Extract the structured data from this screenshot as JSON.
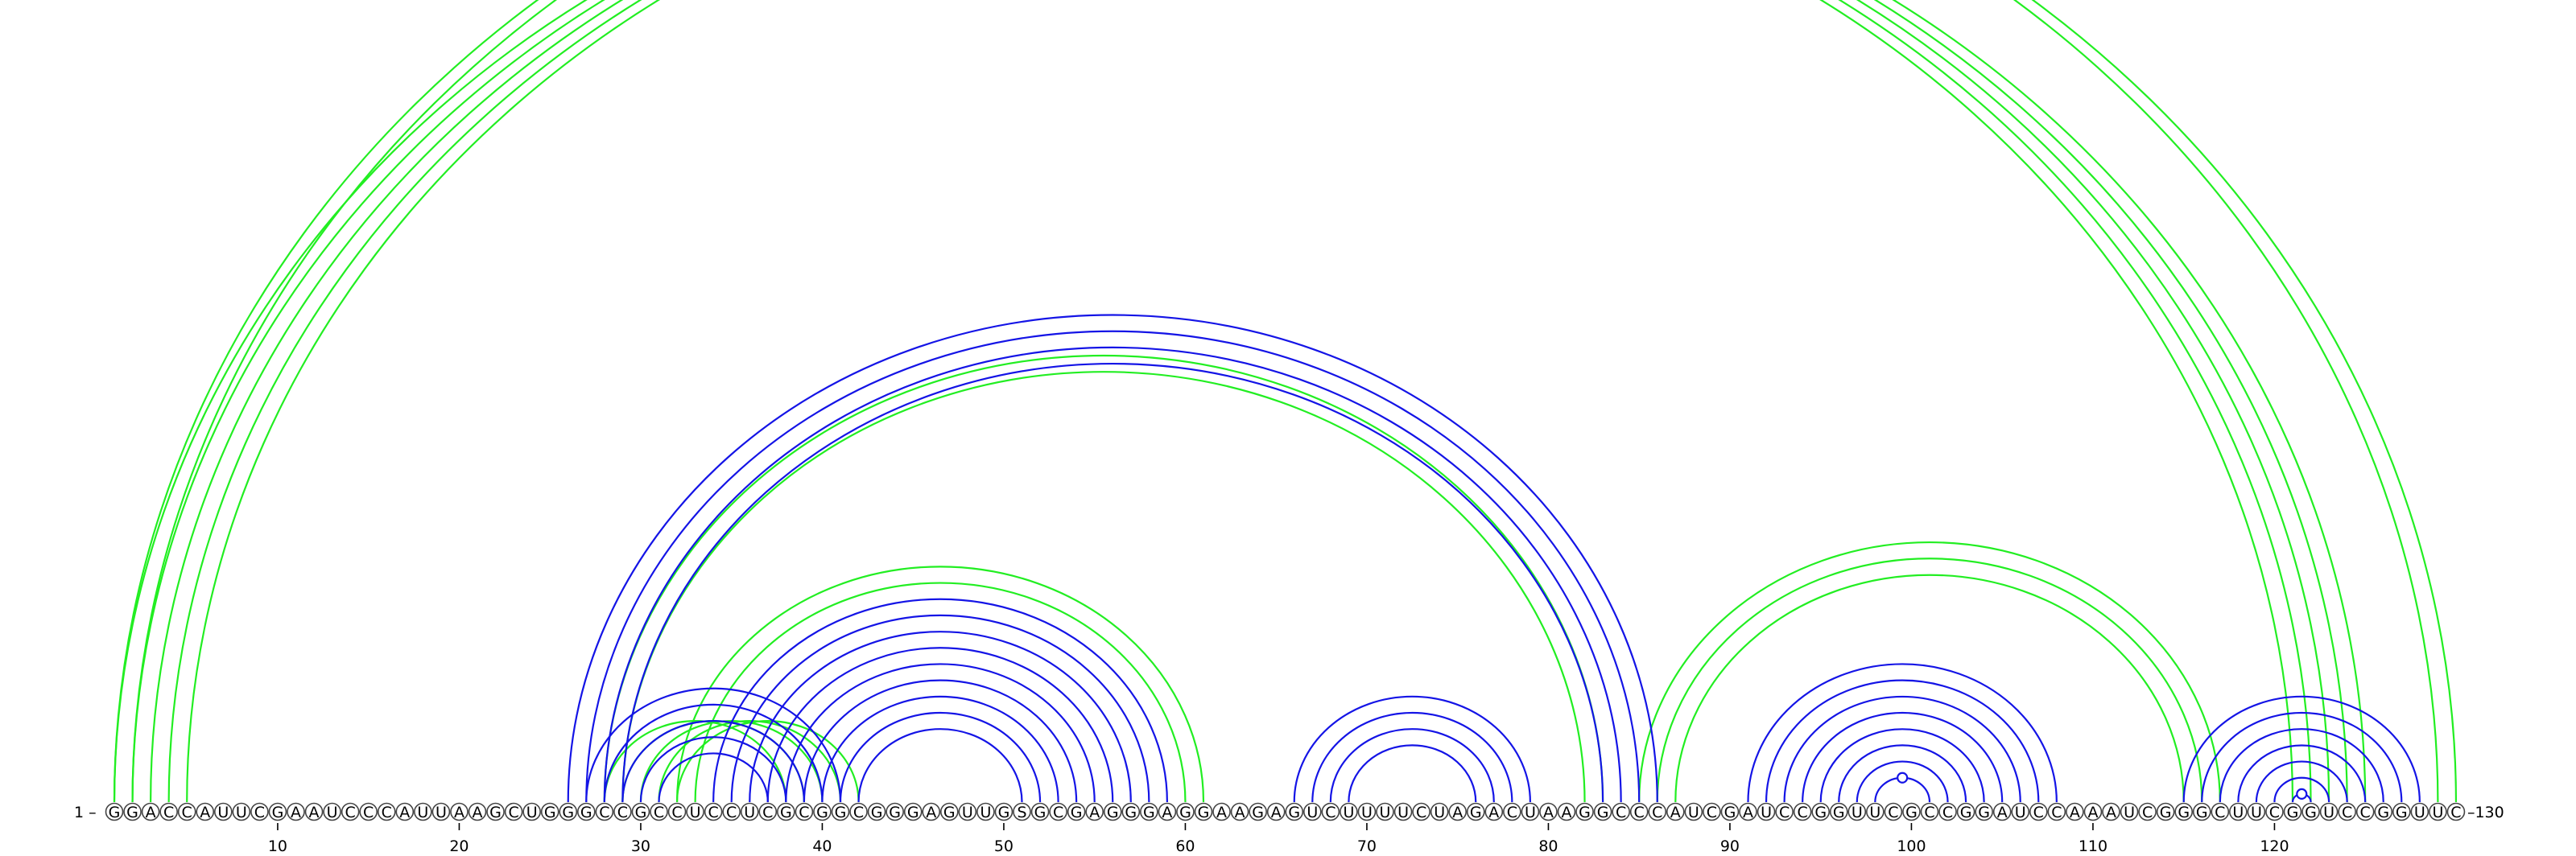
{
  "sequence": "GGACCAUUCGAAUCCCAUUAAGCUGGGCCGCCUCCUCGCGGCGGGAGUUGSGCGAGGGAGGAAGAGUCUUUUCUAGACUAAGGCCCAUCGAUCCGGUUCGCCGGAUCCAAAUCGGGCUUCGGUCCGGUUC",
  "start_label": "1 –",
  "end_label": "–130",
  "ticks": [
    10,
    20,
    30,
    40,
    50,
    60,
    70,
    80,
    90,
    100,
    110,
    120
  ],
  "colors": {
    "green_pairs": "#22ee22",
    "blue_pairs": "#1414e6"
  },
  "arc_groups": [
    {
      "color": "green",
      "pairs": [
        [
          1,
          121
        ],
        [
          2,
          122
        ],
        [
          3,
          123
        ],
        [
          4,
          124
        ],
        [
          5,
          125
        ]
      ]
    },
    {
      "color": "green",
      "pairs": [
        [
          1,
          129
        ],
        [
          2,
          130
        ]
      ],
      "apex_marker": true
    },
    {
      "color": "green",
      "pairs": [
        [
          28,
          38
        ],
        [
          29,
          39
        ],
        [
          30,
          40
        ],
        [
          31,
          41
        ],
        [
          32,
          42
        ]
      ]
    },
    {
      "color": "green",
      "pairs": [
        [
          32,
          61
        ],
        [
          33,
          60
        ]
      ]
    },
    {
      "color": "green",
      "pairs": [
        [
          28,
          83
        ],
        [
          29,
          82
        ]
      ]
    },
    {
      "color": "green",
      "pairs": [
        [
          85,
          117
        ],
        [
          86,
          116
        ],
        [
          87,
          115
        ]
      ]
    },
    {
      "color": "blue",
      "pairs": [
        [
          26,
          86
        ],
        [
          27,
          85
        ],
        [
          28,
          84
        ],
        [
          29,
          83
        ]
      ]
    },
    {
      "color": "blue",
      "pairs": [
        [
          27,
          41
        ],
        [
          28,
          40
        ],
        [
          29,
          39
        ],
        [
          30,
          38
        ],
        [
          31,
          37
        ]
      ]
    },
    {
      "color": "blue",
      "pairs": [
        [
          34,
          59
        ],
        [
          35,
          58
        ],
        [
          36,
          57
        ],
        [
          37,
          56
        ],
        [
          38,
          55
        ],
        [
          39,
          54
        ],
        [
          40,
          53
        ],
        [
          41,
          52
        ],
        [
          42,
          51
        ]
      ]
    },
    {
      "color": "blue",
      "pairs": [
        [
          66,
          79
        ],
        [
          67,
          78
        ],
        [
          68,
          77
        ],
        [
          69,
          76
        ]
      ]
    },
    {
      "color": "blue",
      "pairs": [
        [
          91,
          108
        ],
        [
          92,
          107
        ],
        [
          93,
          106
        ],
        [
          94,
          105
        ],
        [
          95,
          104
        ],
        [
          96,
          103
        ],
        [
          97,
          102
        ],
        [
          98,
          101
        ]
      ],
      "apex_marker": true
    },
    {
      "color": "blue",
      "pairs": [
        [
          115,
          128
        ],
        [
          116,
          127
        ],
        [
          117,
          126
        ],
        [
          118,
          125
        ],
        [
          119,
          124
        ],
        [
          120,
          123
        ],
        [
          121,
          122
        ]
      ],
      "apex_marker": true
    }
  ]
}
